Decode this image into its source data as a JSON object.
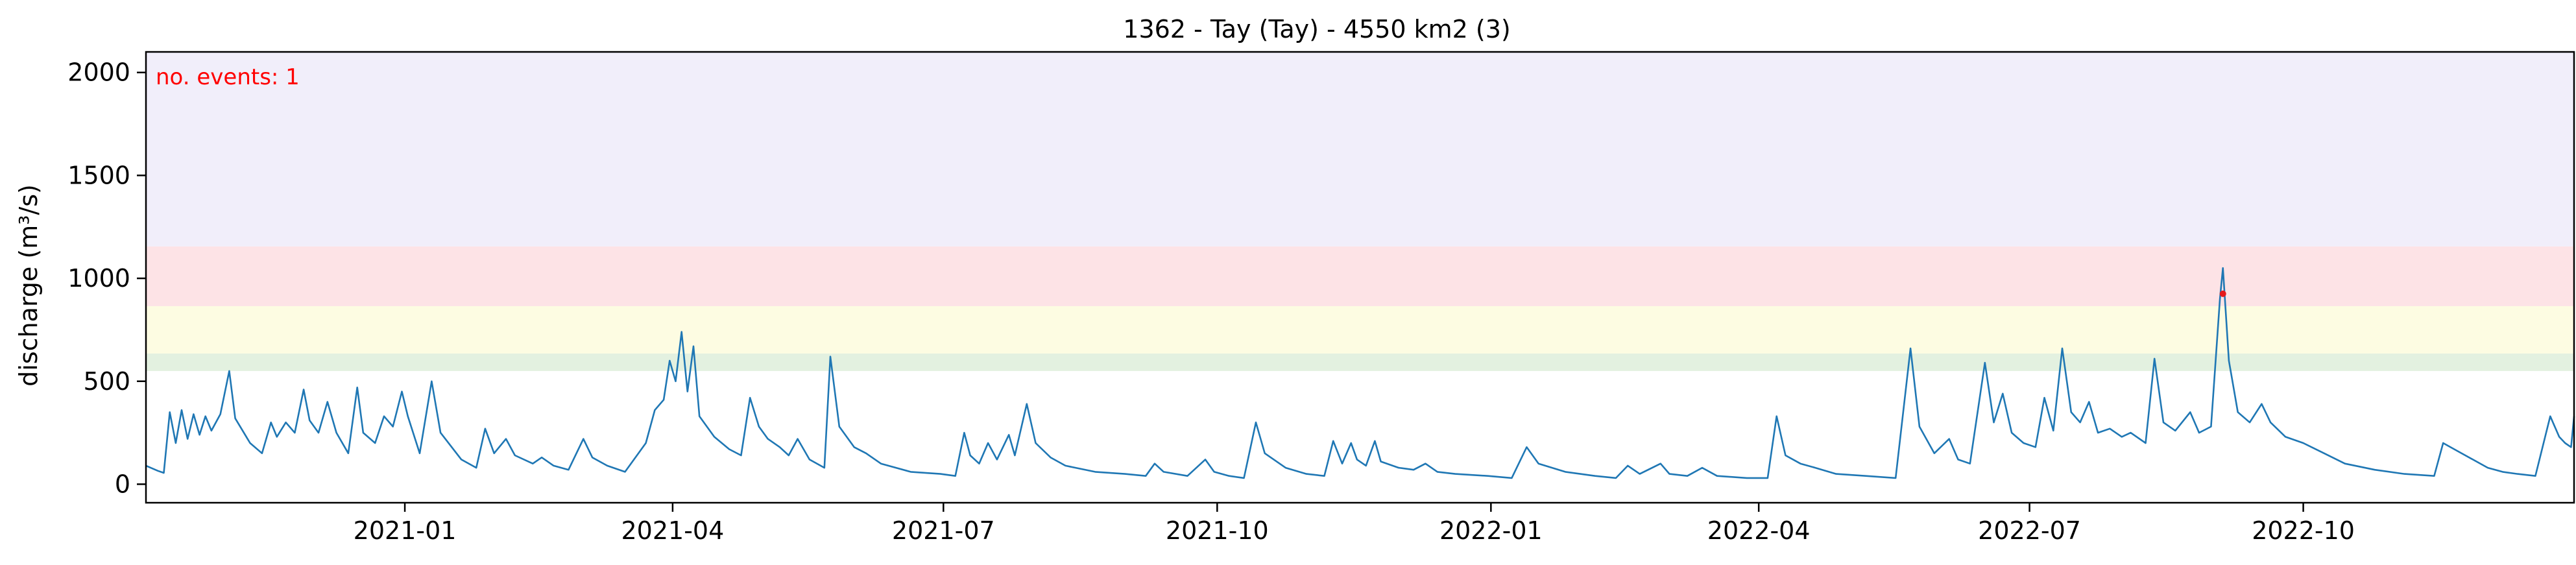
{
  "chart_data": {
    "type": "line",
    "title": "1362 - Tay (Tay) - 4550 km2 (3)",
    "xlabel": "",
    "ylabel": "discharge (m³/s)",
    "xlim": [
      "2020-10-06",
      "2022-12-31"
    ],
    "ylim": [
      -90,
      2100
    ],
    "x_ticks": [
      "2021-01",
      "2021-04",
      "2021-07",
      "2021-10",
      "2022-01",
      "2022-04",
      "2022-07",
      "2022-10"
    ],
    "y_ticks": [
      0,
      500,
      1000,
      1500,
      2000
    ],
    "grid": false,
    "annotation": {
      "text": "no. events: 1",
      "color": "#ff0000",
      "position": "top-left"
    },
    "threshold_bands": [
      {
        "from": 550,
        "to": 635,
        "color": "#e3f1e0"
      },
      {
        "from": 635,
        "to": 865,
        "color": "#fdfce2"
      },
      {
        "from": 865,
        "to": 1155,
        "color": "#fde3e6"
      },
      {
        "from": 1155,
        "to": 2100,
        "color": "#f1eefa"
      }
    ],
    "line_color": "#1f77b4",
    "event_marker_color": "#e41a1c",
    "series": [
      {
        "anchors": [
          [
            "2020-10-06",
            90
          ],
          [
            "2020-10-10",
            65
          ],
          [
            "2020-10-12",
            55
          ],
          [
            "2020-10-14",
            350
          ],
          [
            "2020-10-16",
            200
          ],
          [
            "2020-10-18",
            360
          ],
          [
            "2020-10-20",
            220
          ],
          [
            "2020-10-22",
            340
          ],
          [
            "2020-10-24",
            240
          ],
          [
            "2020-10-26",
            330
          ],
          [
            "2020-10-28",
            260
          ],
          [
            "2020-10-31",
            340
          ],
          [
            "2020-11-03",
            550
          ],
          [
            "2020-11-05",
            320
          ],
          [
            "2020-11-10",
            200
          ],
          [
            "2020-11-14",
            150
          ],
          [
            "2020-11-17",
            300
          ],
          [
            "2020-11-19",
            230
          ],
          [
            "2020-11-22",
            300
          ],
          [
            "2020-11-25",
            250
          ],
          [
            "2020-11-28",
            460
          ],
          [
            "2020-11-30",
            310
          ],
          [
            "2020-12-03",
            250
          ],
          [
            "2020-12-06",
            400
          ],
          [
            "2020-12-09",
            250
          ],
          [
            "2020-12-13",
            150
          ],
          [
            "2020-12-16",
            470
          ],
          [
            "2020-12-18",
            250
          ],
          [
            "2020-12-22",
            200
          ],
          [
            "2020-12-25",
            330
          ],
          [
            "2020-12-28",
            280
          ],
          [
            "2020-12-31",
            450
          ],
          [
            "2021-01-02",
            330
          ],
          [
            "2021-01-06",
            150
          ],
          [
            "2021-01-10",
            500
          ],
          [
            "2021-01-13",
            250
          ],
          [
            "2021-01-20",
            120
          ],
          [
            "2021-01-25",
            80
          ],
          [
            "2021-01-28",
            270
          ],
          [
            "2021-01-31",
            150
          ],
          [
            "2021-02-04",
            220
          ],
          [
            "2021-02-07",
            140
          ],
          [
            "2021-02-13",
            100
          ],
          [
            "2021-02-16",
            130
          ],
          [
            "2021-02-20",
            90
          ],
          [
            "2021-02-25",
            70
          ],
          [
            "2021-03-02",
            220
          ],
          [
            "2021-03-05",
            130
          ],
          [
            "2021-03-10",
            90
          ],
          [
            "2021-03-16",
            60
          ],
          [
            "2021-03-23",
            200
          ],
          [
            "2021-03-26",
            360
          ],
          [
            "2021-03-29",
            410
          ],
          [
            "2021-03-31",
            600
          ],
          [
            "2021-04-02",
            500
          ],
          [
            "2021-04-04",
            740
          ],
          [
            "2021-04-06",
            450
          ],
          [
            "2021-04-08",
            670
          ],
          [
            "2021-04-10",
            330
          ],
          [
            "2021-04-15",
            230
          ],
          [
            "2021-04-20",
            170
          ],
          [
            "2021-04-24",
            140
          ],
          [
            "2021-04-27",
            420
          ],
          [
            "2021-04-30",
            280
          ],
          [
            "2021-05-03",
            220
          ],
          [
            "2021-05-07",
            180
          ],
          [
            "2021-05-10",
            140
          ],
          [
            "2021-05-13",
            220
          ],
          [
            "2021-05-17",
            120
          ],
          [
            "2021-05-22",
            80
          ],
          [
            "2021-05-24",
            620
          ],
          [
            "2021-05-27",
            280
          ],
          [
            "2021-06-01",
            180
          ],
          [
            "2021-06-05",
            150
          ],
          [
            "2021-06-10",
            100
          ],
          [
            "2021-06-20",
            60
          ],
          [
            "2021-06-30",
            50
          ],
          [
            "2021-07-05",
            40
          ],
          [
            "2021-07-08",
            250
          ],
          [
            "2021-07-10",
            140
          ],
          [
            "2021-07-13",
            100
          ],
          [
            "2021-07-16",
            200
          ],
          [
            "2021-07-19",
            120
          ],
          [
            "2021-07-23",
            240
          ],
          [
            "2021-07-25",
            140
          ],
          [
            "2021-07-29",
            390
          ],
          [
            "2021-08-01",
            200
          ],
          [
            "2021-08-06",
            130
          ],
          [
            "2021-08-11",
            90
          ],
          [
            "2021-08-21",
            60
          ],
          [
            "2021-08-31",
            50
          ],
          [
            "2021-09-07",
            40
          ],
          [
            "2021-09-10",
            100
          ],
          [
            "2021-09-13",
            60
          ],
          [
            "2021-09-21",
            40
          ],
          [
            "2021-09-27",
            120
          ],
          [
            "2021-09-30",
            60
          ],
          [
            "2021-10-05",
            40
          ],
          [
            "2021-10-10",
            30
          ],
          [
            "2021-10-14",
            300
          ],
          [
            "2021-10-17",
            150
          ],
          [
            "2021-10-24",
            80
          ],
          [
            "2021-10-31",
            50
          ],
          [
            "2021-11-06",
            40
          ],
          [
            "2021-11-09",
            210
          ],
          [
            "2021-11-12",
            100
          ],
          [
            "2021-11-15",
            200
          ],
          [
            "2021-11-17",
            120
          ],
          [
            "2021-11-20",
            90
          ],
          [
            "2021-11-23",
            210
          ],
          [
            "2021-11-25",
            110
          ],
          [
            "2021-12-01",
            80
          ],
          [
            "2021-12-06",
            70
          ],
          [
            "2021-12-10",
            100
          ],
          [
            "2021-12-14",
            60
          ],
          [
            "2021-12-20",
            50
          ],
          [
            "2021-12-31",
            40
          ],
          [
            "2022-01-08",
            30
          ],
          [
            "2022-01-13",
            180
          ],
          [
            "2022-01-17",
            100
          ],
          [
            "2022-01-26",
            60
          ],
          [
            "2022-02-05",
            40
          ],
          [
            "2022-02-12",
            30
          ],
          [
            "2022-02-16",
            90
          ],
          [
            "2022-02-20",
            50
          ],
          [
            "2022-02-27",
            100
          ],
          [
            "2022-03-02",
            50
          ],
          [
            "2022-03-08",
            40
          ],
          [
            "2022-03-13",
            80
          ],
          [
            "2022-03-18",
            40
          ],
          [
            "2022-03-28",
            30
          ],
          [
            "2022-04-04",
            30
          ],
          [
            "2022-04-07",
            330
          ],
          [
            "2022-04-10",
            140
          ],
          [
            "2022-04-15",
            100
          ],
          [
            "2022-04-20",
            80
          ],
          [
            "2022-04-27",
            50
          ],
          [
            "2022-05-07",
            40
          ],
          [
            "2022-05-17",
            30
          ],
          [
            "2022-05-22",
            660
          ],
          [
            "2022-05-25",
            280
          ],
          [
            "2022-05-30",
            150
          ],
          [
            "2022-06-04",
            220
          ],
          [
            "2022-06-07",
            120
          ],
          [
            "2022-06-11",
            100
          ],
          [
            "2022-06-16",
            590
          ],
          [
            "2022-06-19",
            300
          ],
          [
            "2022-06-22",
            440
          ],
          [
            "2022-06-25",
            250
          ],
          [
            "2022-06-29",
            200
          ],
          [
            "2022-07-03",
            180
          ],
          [
            "2022-07-06",
            420
          ],
          [
            "2022-07-09",
            260
          ],
          [
            "2022-07-12",
            660
          ],
          [
            "2022-07-15",
            350
          ],
          [
            "2022-07-18",
            300
          ],
          [
            "2022-07-21",
            400
          ],
          [
            "2022-07-24",
            250
          ],
          [
            "2022-07-28",
            270
          ],
          [
            "2022-08-01",
            230
          ],
          [
            "2022-08-04",
            250
          ],
          [
            "2022-08-09",
            200
          ],
          [
            "2022-08-12",
            610
          ],
          [
            "2022-08-15",
            300
          ],
          [
            "2022-08-19",
            260
          ],
          [
            "2022-08-24",
            350
          ],
          [
            "2022-08-27",
            250
          ],
          [
            "2022-08-31",
            280
          ],
          [
            "2022-09-03",
            900
          ],
          [
            "2022-09-04",
            1050
          ],
          [
            "2022-09-06",
            600
          ],
          [
            "2022-09-09",
            350
          ],
          [
            "2022-09-13",
            300
          ],
          [
            "2022-09-17",
            390
          ],
          [
            "2022-09-20",
            300
          ],
          [
            "2022-09-25",
            230
          ],
          [
            "2022-10-01",
            200
          ],
          [
            "2022-10-08",
            150
          ],
          [
            "2022-10-15",
            100
          ],
          [
            "2022-10-25",
            70
          ],
          [
            "2022-11-04",
            50
          ],
          [
            "2022-11-14",
            40
          ],
          [
            "2022-11-17",
            200
          ],
          [
            "2022-11-22",
            160
          ],
          [
            "2022-11-27",
            120
          ],
          [
            "2022-12-02",
            80
          ],
          [
            "2022-12-07",
            60
          ],
          [
            "2022-12-12",
            50
          ],
          [
            "2022-12-18",
            40
          ],
          [
            "2022-12-23",
            330
          ],
          [
            "2022-12-26",
            230
          ],
          [
            "2022-12-28",
            200
          ],
          [
            "2022-12-30",
            180
          ],
          [
            "2022-12-31",
            330
          ]
        ]
      }
    ],
    "events": [
      {
        "x": "2022-09-04",
        "y": 925
      }
    ]
  }
}
